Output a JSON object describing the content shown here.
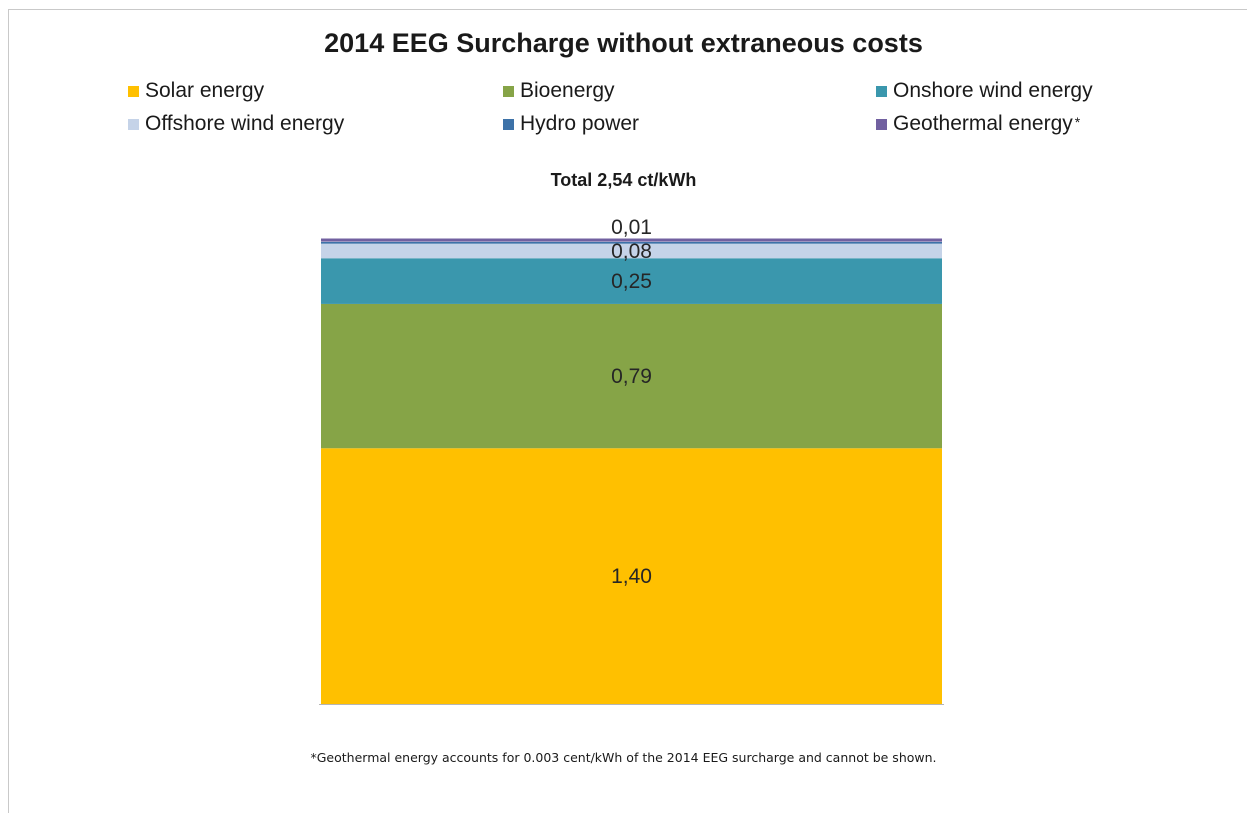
{
  "chart_data": {
    "type": "bar",
    "stacked": true,
    "title": "2014 EEG Surcharge without extraneous costs",
    "subtitle": "Total 2,54 ct/kWh",
    "categories": [
      ""
    ],
    "series": [
      {
        "name": "Solar energy",
        "value": 1.4,
        "label": "1,40",
        "color": "#FFC000"
      },
      {
        "name": "Bioenergy",
        "value": 0.79,
        "label": "0,79",
        "color": "#86A447"
      },
      {
        "name": "Onshore wind energy",
        "value": 0.25,
        "label": "0,25",
        "color": "#3A97AD"
      },
      {
        "name": "Offshore wind energy",
        "value": 0.08,
        "label": "0,08",
        "color": "#C5D3E8"
      },
      {
        "name": "Hydro power",
        "value": 0.01,
        "label": "0,01",
        "color": "#3D72A8"
      },
      {
        "name": "Geothermal energy",
        "value": 0.003,
        "label": "",
        "color": "#7160A0",
        "legend_note": "*"
      }
    ],
    "total": 2.54,
    "legend": {
      "position": "top",
      "columns": 3
    },
    "grid": false,
    "ylim": [
      0,
      2.54
    ],
    "footnote": "*Geothermal energy accounts for 0.003 cent/kWh of the 2014 EEG surcharge and cannot be shown."
  }
}
